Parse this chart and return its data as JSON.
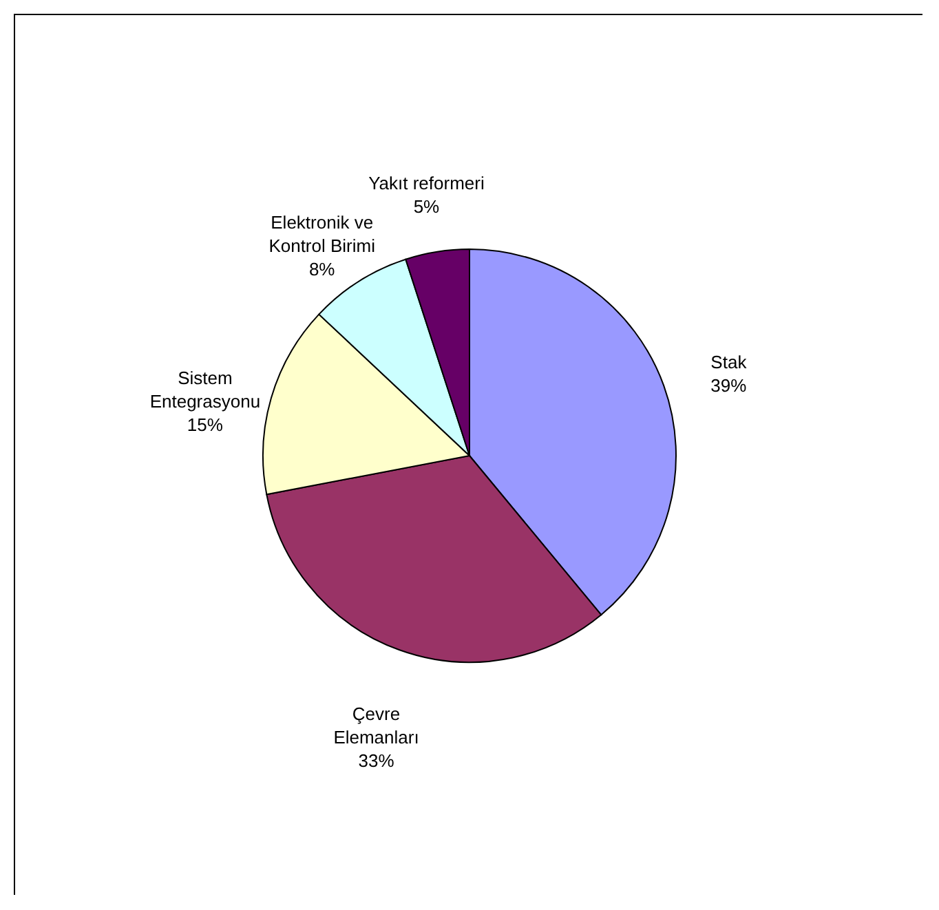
{
  "chart_data": {
    "type": "pie",
    "categories": [
      "Stak",
      "Çevre Elemanları",
      "Sistem Entegrasyonu",
      "Elektronik ve Kontrol Birimi",
      "Yakıt reformeri"
    ],
    "values": [
      39,
      33,
      15,
      8,
      5
    ],
    "colors": [
      "#9999ff",
      "#993366",
      "#ffffcc",
      "#ccffff",
      "#660066"
    ],
    "value_labels": [
      "39%",
      "33%",
      "15%",
      "8%",
      "5%"
    ]
  }
}
